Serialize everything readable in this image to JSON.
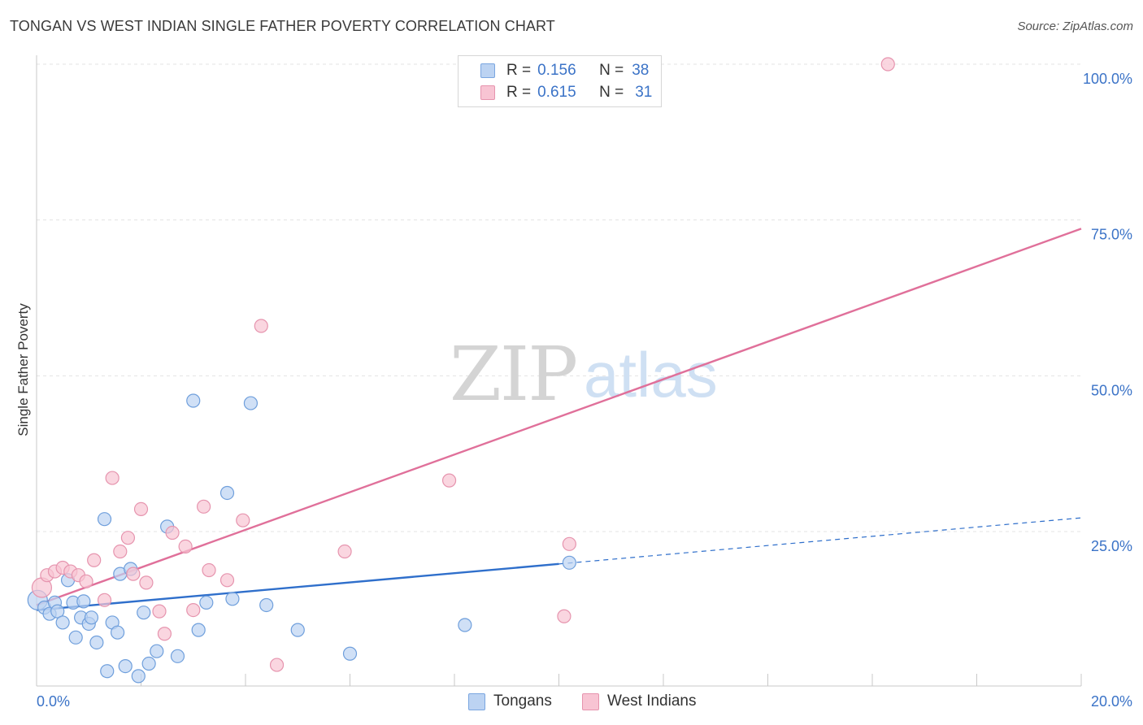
{
  "title": "TONGAN VS WEST INDIAN SINGLE FATHER POVERTY CORRELATION CHART",
  "source": "Source: ZipAtlas.com",
  "watermark": {
    "zip": "ZIP",
    "atlas": "atlas"
  },
  "legend": {
    "r_label": "R =",
    "n_label": "N =",
    "rows": [
      {
        "r": "0.156",
        "n": "38",
        "color": "#7aa6e0"
      },
      {
        "r": "0.615",
        "n": "31",
        "color": "#e694ae"
      }
    ]
  },
  "colors": {
    "tongans_fill": "#bcd3f2",
    "tongans_stroke": "#6f9fdc",
    "tongans_line": "#2f6fcb",
    "westindians_fill": "#f8c4d3",
    "westindians_stroke": "#e694ae",
    "westindians_line": "#e0709a",
    "axis_label": "#3b73c7",
    "grid": "#e3e3e3"
  },
  "chart_data": {
    "type": "scatter",
    "title": "TONGAN VS WEST INDIAN SINGLE FATHER POVERTY CORRELATION CHART",
    "xlabel": "",
    "ylabel": "Single Father Poverty",
    "xlim": [
      0,
      20
    ],
    "ylim": [
      0,
      102
    ],
    "x_ticks": [
      "0.0%",
      "20.0%"
    ],
    "y_ticks": [
      {
        "value": 25,
        "label": "25.0%"
      },
      {
        "value": 50,
        "label": "50.0%"
      },
      {
        "value": 75,
        "label": "75.0%"
      },
      {
        "value": 100,
        "label": "100.0%"
      }
    ],
    "grid": true,
    "legend_position": "top-center",
    "series": [
      {
        "name": "Tongans",
        "color": "#6f9fdc",
        "r": 0.156,
        "n": 38,
        "trend": {
          "x0": 0,
          "y0": 12.4,
          "x1": 10,
          "y1": 19.8,
          "dashed_to_x": 20,
          "dashed_to_y": 27.2
        },
        "points": [
          [
            0.02,
            14.0
          ],
          [
            0.15,
            12.8
          ],
          [
            0.25,
            11.8
          ],
          [
            0.35,
            13.6
          ],
          [
            0.4,
            12.2
          ],
          [
            0.5,
            10.4
          ],
          [
            0.6,
            17.2
          ],
          [
            0.7,
            13.6
          ],
          [
            0.75,
            8.0
          ],
          [
            0.85,
            11.2
          ],
          [
            0.9,
            13.8
          ],
          [
            1.0,
            10.2
          ],
          [
            1.05,
            11.2
          ],
          [
            1.15,
            7.2
          ],
          [
            1.3,
            27.0
          ],
          [
            1.35,
            2.6
          ],
          [
            1.45,
            10.4
          ],
          [
            1.55,
            8.8
          ],
          [
            1.6,
            18.2
          ],
          [
            1.7,
            3.4
          ],
          [
            1.8,
            19.0
          ],
          [
            1.95,
            1.8
          ],
          [
            2.05,
            12.0
          ],
          [
            2.15,
            3.8
          ],
          [
            2.3,
            5.8
          ],
          [
            2.5,
            25.8
          ],
          [
            2.7,
            5.0
          ],
          [
            3.0,
            46.0
          ],
          [
            3.1,
            9.2
          ],
          [
            3.25,
            13.6
          ],
          [
            3.65,
            31.2
          ],
          [
            3.75,
            14.2
          ],
          [
            4.1,
            45.6
          ],
          [
            4.4,
            13.2
          ],
          [
            5.0,
            9.2
          ],
          [
            6.0,
            5.4
          ],
          [
            8.2,
            10.0
          ],
          [
            10.2,
            20.0
          ]
        ]
      },
      {
        "name": "West Indians",
        "color": "#e694ae",
        "r": 0.615,
        "n": 31,
        "trend": {
          "x0": 0,
          "y0": 13.2,
          "x1": 20,
          "y1": 73.6
        },
        "points": [
          [
            0.1,
            16.0
          ],
          [
            0.2,
            18.0
          ],
          [
            0.35,
            18.6
          ],
          [
            0.5,
            19.2
          ],
          [
            0.65,
            18.6
          ],
          [
            0.8,
            18.0
          ],
          [
            0.95,
            17.0
          ],
          [
            1.1,
            20.4
          ],
          [
            1.3,
            14.0
          ],
          [
            1.45,
            33.6
          ],
          [
            1.6,
            21.8
          ],
          [
            1.75,
            24.0
          ],
          [
            1.85,
            18.2
          ],
          [
            2.0,
            28.6
          ],
          [
            2.1,
            16.8
          ],
          [
            2.35,
            12.2
          ],
          [
            2.45,
            8.6
          ],
          [
            2.6,
            24.8
          ],
          [
            2.85,
            22.6
          ],
          [
            3.0,
            12.4
          ],
          [
            3.2,
            29.0
          ],
          [
            3.3,
            18.8
          ],
          [
            3.65,
            17.2
          ],
          [
            3.95,
            26.8
          ],
          [
            4.3,
            58.0
          ],
          [
            4.6,
            3.6
          ],
          [
            5.9,
            21.8
          ],
          [
            7.9,
            33.2
          ],
          [
            10.2,
            23.0
          ],
          [
            10.1,
            11.4
          ],
          [
            16.3,
            100.0
          ]
        ]
      }
    ]
  }
}
